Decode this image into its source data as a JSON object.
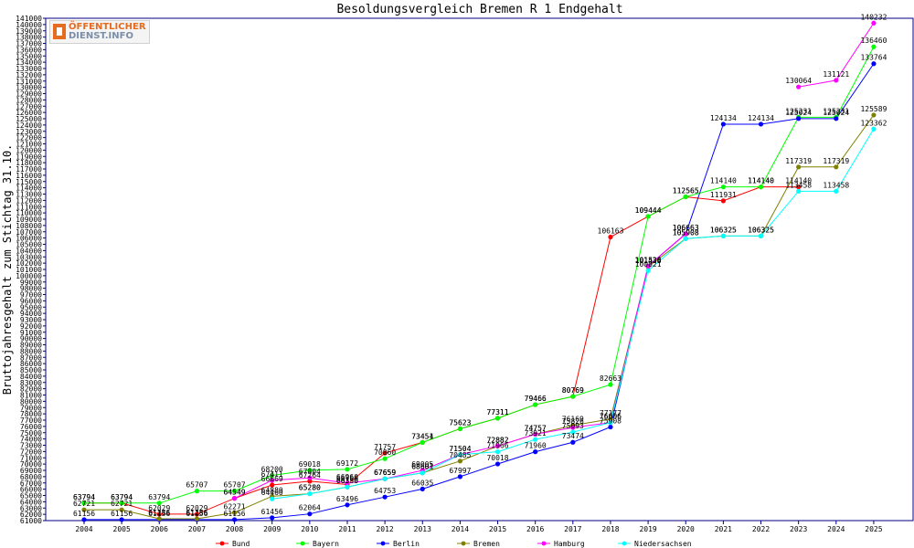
{
  "logo": {
    "line1": "ÖFFENTLICHER",
    "line2": "DIENST.INFO"
  },
  "chart_data": {
    "type": "line",
    "title": "Besoldungsvergleich Bremen R 1 Endgehalt",
    "xlabel": "",
    "ylabel": "Bruttojahresgehalt zum Stichtag 31.10.",
    "ylim": [
      61000,
      141000
    ],
    "ytick_step": 1000,
    "grid": false,
    "legend_position": "bottom",
    "x": [
      "2004",
      "2005",
      "2006",
      "2007",
      "2008",
      "2009",
      "2010",
      "2011",
      "2012",
      "2013",
      "2014",
      "2015",
      "2016",
      "2017",
      "2018",
      "2019",
      "2020",
      "2021",
      "2022",
      "2023",
      "2024",
      "2025"
    ],
    "series": [
      {
        "name": "Bund",
        "color": "#ff0000",
        "values": [
          63794,
          63794,
          62029,
          62029,
          64549,
          66669,
          67264,
          66750,
          71757,
          73454,
          75623,
          77311,
          79466,
          80769,
          106163,
          109444,
          112565,
          111931,
          114140,
          114140,
          null,
          null
        ]
      },
      {
        "name": "Bayern",
        "color": "#00ff00",
        "values": [
          63794,
          63794,
          63794,
          65707,
          65707,
          68200,
          69018,
          69172,
          70860,
          73451,
          75623,
          77311,
          79466,
          80769,
          82663,
          109444,
          112565,
          114140,
          114140,
          125231,
          125231,
          136460
        ]
      },
      {
        "name": "Berlin",
        "color": "#0000ff",
        "values": [
          61156,
          61156,
          61156,
          61156,
          61156,
          61456,
          62064,
          63496,
          64753,
          66035,
          67997,
          70018,
          71960,
          73474,
          75908,
          101536,
          106663,
          124134,
          124134,
          125024,
          125024,
          133764
        ]
      },
      {
        "name": "Bremen",
        "color": "#808000",
        "values": [
          62721,
          62721,
          61286,
          61286,
          62271,
          64880,
          65280,
          66350,
          67659,
          68601,
          70485,
          72882,
          74757,
          76169,
          77177,
          101438,
          105908,
          106325,
          106325,
          117319,
          117319,
          125589
        ]
      },
      {
        "name": "Hamburg",
        "color": "#ff00ff",
        "values": [
          null,
          null,
          null,
          null,
          64549,
          67411,
          67804,
          66960,
          67659,
          69005,
          71504,
          72882,
          74757,
          75826,
          76606,
          101536,
          106663,
          null,
          null,
          130064,
          131121,
          140232
        ]
      },
      {
        "name": "Niedersachsen",
        "color": "#00ffff",
        "values": [
          null,
          null,
          null,
          null,
          null,
          64460,
          65280,
          66350,
          67659,
          68601,
          71504,
          71966,
          73921,
          75093,
          76606,
          100821,
          105908,
          106325,
          106325,
          113458,
          113458,
          123362
        ]
      }
    ]
  }
}
